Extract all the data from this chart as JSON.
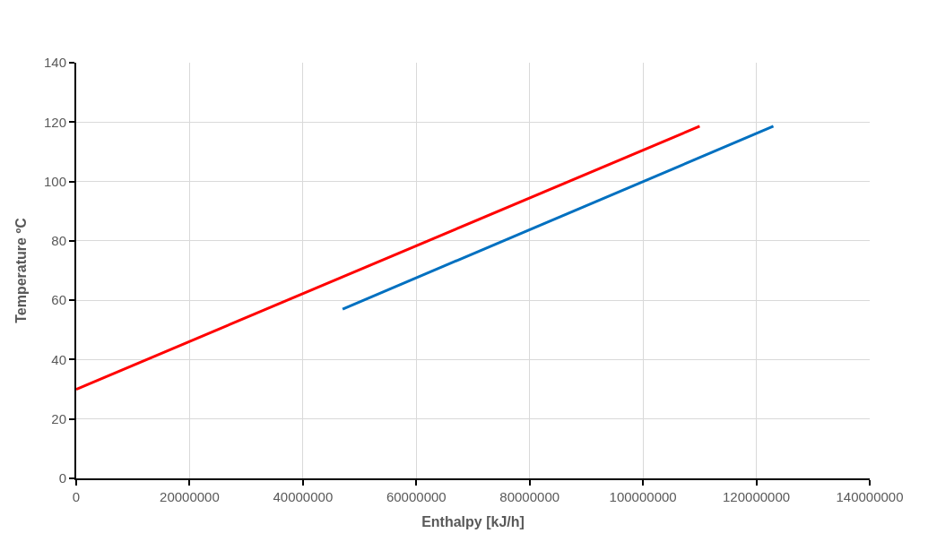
{
  "chart_data": {
    "type": "line",
    "xlabel": "Enthalpy [kJ/h]",
    "ylabel": "Temperature ºC",
    "series": [
      {
        "color": "#ff0000",
        "x": [
          0,
          110000000
        ],
        "values": [
          30,
          118.6
        ]
      },
      {
        "color": "#0070c0",
        "x": [
          47000000,
          123000000
        ],
        "values": [
          57,
          118.6
        ]
      }
    ],
    "xlim": [
      0,
      140000000
    ],
    "xticks": [
      0,
      20000000,
      40000000,
      60000000,
      80000000,
      100000000,
      120000000,
      140000000
    ],
    "ylim": [
      0,
      140
    ],
    "yticks": [
      0,
      20,
      40,
      60,
      80,
      100,
      120,
      140
    ],
    "grid": true,
    "marker": "none",
    "line_style": "solid"
  }
}
